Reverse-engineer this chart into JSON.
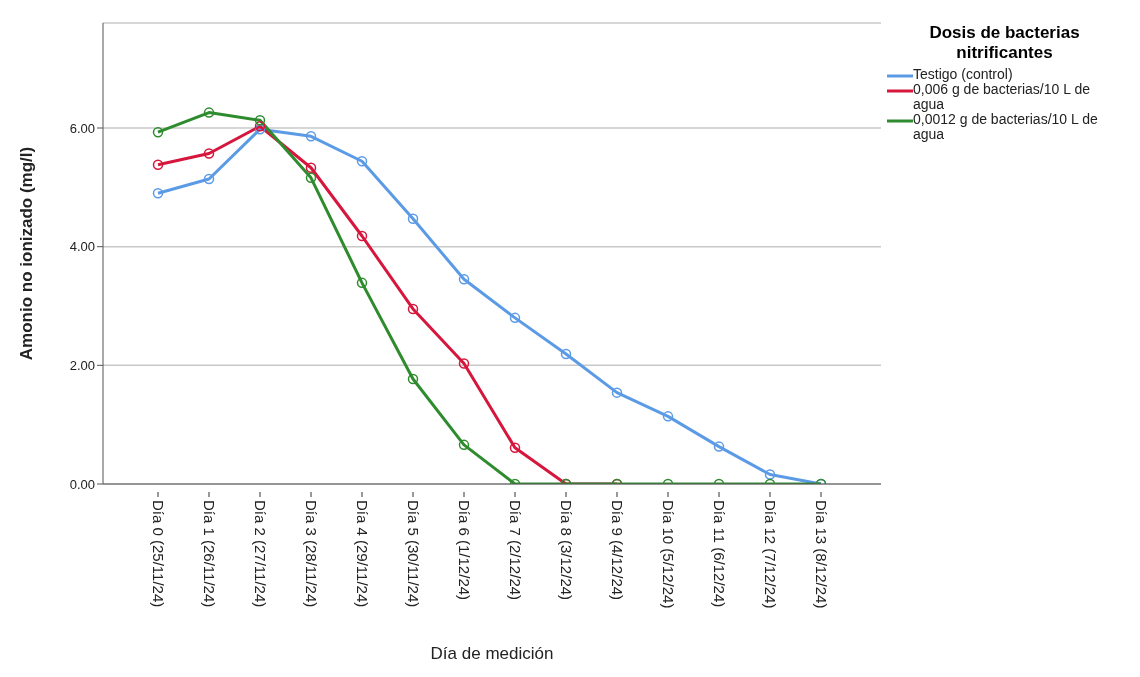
{
  "chart_data": {
    "type": "line",
    "xlabel": "Día de medición",
    "ylabel": "Amonio no ionizado (mg/l)",
    "legend_title": "Dosis de bacterias nitrificantes",
    "categories": [
      "Día 0 (25/11/24)",
      "Día 1 (26/11/24)",
      "Día 2 (27/11/24)",
      "Día 3 (28/11/24)",
      "Día 4 (29/11/24)",
      "Día 5 (30/11/24)",
      "Día 6 (1/12/24)",
      "Día 7 (2/12/24)",
      "Día 8 (3/12/24)",
      "Día 9 (4/12/24)",
      "Día 10 (5/12/24)",
      "Día 11 (6/12/24)",
      "Día 12 (7/12/24)",
      "Día 13 (8/12/24)"
    ],
    "series": [
      {
        "name": "Testigo (control)",
        "color": "#5b9be6",
        "values": [
          4.9,
          5.14,
          5.98,
          5.86,
          5.44,
          4.47,
          3.45,
          2.8,
          2.19,
          1.54,
          1.14,
          0.63,
          0.16,
          0
        ]
      },
      {
        "name": "0,006 g de bacterias/10 L de agua",
        "color": "#d6163c",
        "values": [
          5.38,
          5.57,
          6.03,
          5.33,
          4.18,
          2.95,
          2.03,
          0.61,
          0,
          0,
          null,
          null,
          null,
          null
        ]
      },
      {
        "name": "0,0012 g de bacterias/10 L de agua",
        "color": "#2e8b2e",
        "values": [
          5.93,
          6.26,
          6.13,
          5.16,
          3.39,
          1.77,
          0.66,
          0,
          0,
          0,
          0,
          0,
          0,
          0
        ]
      }
    ],
    "ylim": [
      0,
      7.77
    ],
    "yticks": [
      {
        "value": 0,
        "label": "0.00"
      },
      {
        "value": 2,
        "label": "2.00"
      },
      {
        "value": 4,
        "label": "4.00"
      },
      {
        "value": 6,
        "label": "6.00"
      }
    ],
    "grid": "y",
    "legend": "top right",
    "marker": "circle",
    "line_style": "solid"
  }
}
